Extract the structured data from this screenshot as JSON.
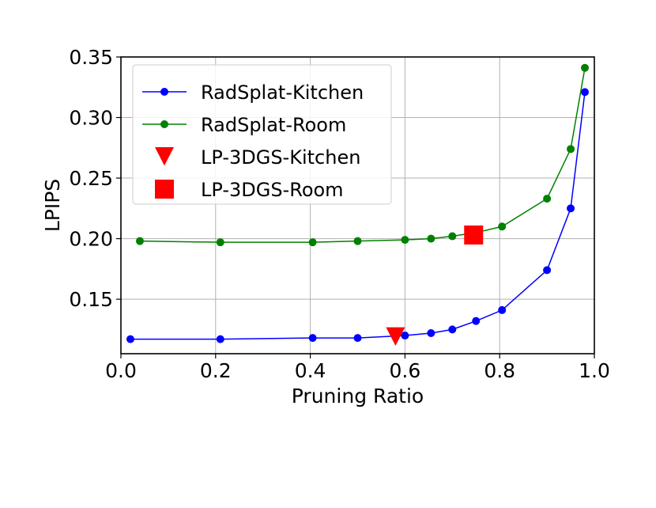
{
  "chart_data": {
    "type": "line",
    "xlabel": "Pruning Ratio",
    "ylabel": "LPIPS",
    "xlim": [
      0.0,
      1.0
    ],
    "ylim": [
      0.105,
      0.35
    ],
    "xticks": [
      "0.0",
      "0.2",
      "0.4",
      "0.6",
      "0.8",
      "1.0"
    ],
    "yticks": [
      "0.15",
      "0.20",
      "0.25",
      "0.30",
      "0.35"
    ],
    "grid": true,
    "legend_position": "top-left",
    "series": [
      {
        "name": "RadSplat-Kitchen",
        "kind": "line",
        "color": "#0000ff",
        "marker": "circle",
        "x": [
          0.02,
          0.21,
          0.405,
          0.5,
          0.6,
          0.655,
          0.7,
          0.75,
          0.805,
          0.9,
          0.95,
          0.98
        ],
        "y": [
          0.117,
          0.117,
          0.118,
          0.118,
          0.12,
          0.122,
          0.125,
          0.132,
          0.141,
          0.174,
          0.225,
          0.321
        ]
      },
      {
        "name": "RadSplat-Room",
        "kind": "line",
        "color": "#008000",
        "marker": "circle",
        "x": [
          0.04,
          0.21,
          0.405,
          0.5,
          0.6,
          0.655,
          0.7,
          0.75,
          0.805,
          0.9,
          0.95,
          0.98
        ],
        "y": [
          0.198,
          0.197,
          0.197,
          0.198,
          0.199,
          0.2,
          0.202,
          0.205,
          0.21,
          0.233,
          0.274,
          0.341
        ]
      },
      {
        "name": "LP-3DGS-Kitchen",
        "kind": "point",
        "color": "#ff0000",
        "marker": "triangle-down",
        "x": [
          0.58
        ],
        "y": [
          0.119
        ]
      },
      {
        "name": "LP-3DGS-Room",
        "kind": "point",
        "color": "#ff0000",
        "marker": "square",
        "x": [
          0.745
        ],
        "y": [
          0.203
        ]
      }
    ]
  }
}
